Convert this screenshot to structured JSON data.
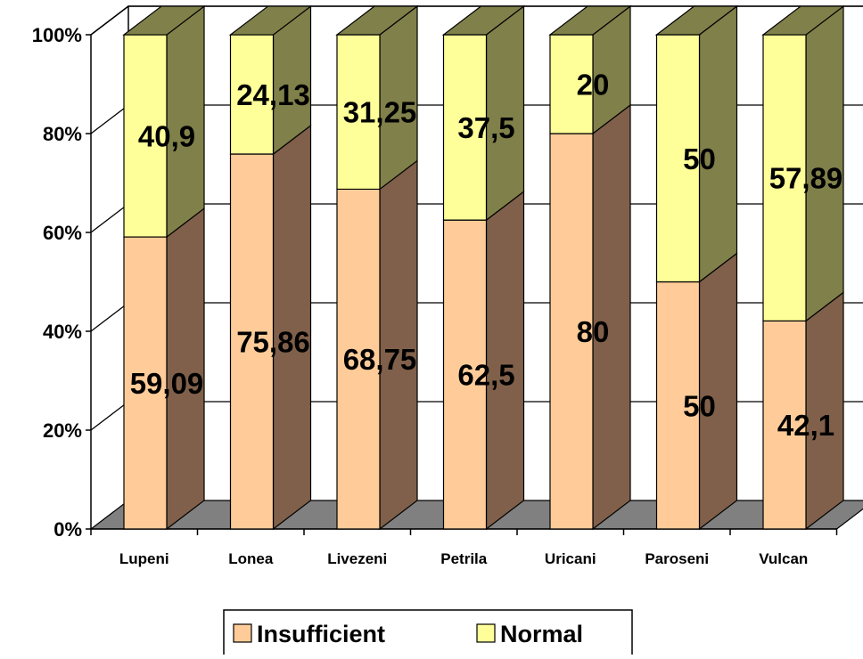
{
  "chart_data": {
    "type": "bar",
    "stacked": true,
    "percent_stacked": true,
    "three_d": true,
    "categories": [
      "Lupeni",
      "Lonea",
      "Livezeni",
      "Petrila",
      "Uricani",
      "Paroseni",
      "Vulcan"
    ],
    "series": [
      {
        "name": "Insufficient",
        "values": [
          59.09,
          75.86,
          68.75,
          62.5,
          80,
          50,
          42.1
        ],
        "labels": [
          "59,09",
          "75,86",
          "68,75",
          "62,5",
          "80",
          "50",
          "42,1"
        ],
        "color": "#ffcc99",
        "side_color": "#80604a"
      },
      {
        "name": "Normal",
        "values": [
          40.9,
          24.13,
          31.25,
          37.5,
          20,
          50,
          57.89
        ],
        "labels": [
          "40,9",
          "24,13",
          "31,25",
          "37,5",
          "20",
          "50",
          "57,89"
        ],
        "color": "#ffff99",
        "side_color": "#80804a"
      }
    ],
    "ylim": [
      0,
      100
    ],
    "yticks": [
      "0%",
      "20%",
      "40%",
      "60%",
      "80%",
      "100%"
    ],
    "grid": true,
    "legend_position": "bottom"
  }
}
